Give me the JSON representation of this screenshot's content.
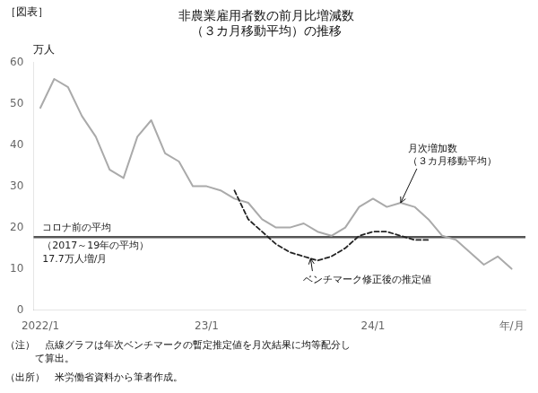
{
  "chart_data": {
    "type": "line",
    "title": [
      "非農業雇用者数の前月比増減数",
      "（３カ月移動平均）の推移"
    ],
    "figure_label": "［図表］",
    "ylabel": "万人",
    "notes": [
      "（注）　点線グラフは年次ベンチマークの暫定推定値を月次結果に均等配分し",
      "　　　て算出。"
    ],
    "source": "（出所）　米労働省資料から筆者作成。",
    "background_color": "#ffffff",
    "series": [
      {
        "color": "#aaaaaa",
        "line_style": "solid",
        "x": [
          0,
          1,
          2,
          3,
          4,
          5,
          6,
          7,
          8,
          9,
          10,
          11,
          12,
          13,
          14,
          15,
          16,
          17,
          18,
          19,
          20,
          21,
          22,
          23,
          24,
          25,
          26,
          27,
          28,
          29,
          30,
          31,
          32,
          33,
          34
        ],
        "values": [
          49,
          56,
          54,
          47,
          42,
          34,
          32,
          42,
          46,
          38,
          36,
          30,
          30,
          29,
          27,
          26,
          22,
          20,
          20,
          21,
          19,
          18,
          20,
          25,
          27,
          25,
          26,
          25,
          22,
          18,
          17,
          14,
          11,
          13,
          10
        ]
      },
      {
        "color": "#222222",
        "line_style": "dashed",
        "x": [
          14,
          15,
          16,
          17,
          18,
          19,
          20,
          21,
          22,
          23,
          24,
          25,
          26,
          27,
          28
        ],
        "values": [
          29,
          22,
          19,
          16,
          14,
          13,
          12,
          13,
          15,
          18,
          19,
          19,
          18,
          17,
          17
        ]
      }
    ],
    "reference_line": {
      "value": 17.7,
      "color": "#555555",
      "labels": [
        "コロナ前の平均",
        "（2017～19年の平均）",
        "17.7万人増/月"
      ]
    },
    "annotations": [
      {
        "text": "月次増加数\n（３カ月移動平均）",
        "x": 26,
        "y": 26
      },
      {
        "text": "ベンチマーク修正後の推定値",
        "x": 19.5,
        "y": 12.5
      }
    ],
    "xlim": [
      -0.5,
      35
    ],
    "xticks": [
      {
        "value": 0,
        "label": "2022/1"
      },
      {
        "value": 12,
        "label": "23/1"
      },
      {
        "value": 24,
        "label": "24/1"
      },
      {
        "value": 34,
        "label": "年/月"
      }
    ],
    "ylim": [
      0,
      60
    ],
    "yticks": [
      0,
      10,
      20,
      30,
      40,
      50,
      60
    ],
    "grid": false
  }
}
